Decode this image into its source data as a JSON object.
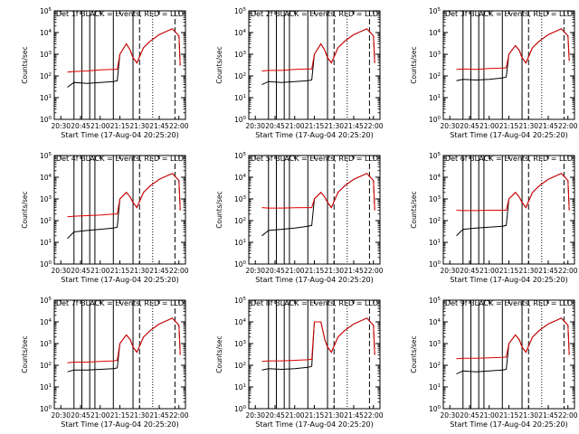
{
  "colors": {
    "background": "#ffffff",
    "events": "#000000",
    "lld": "#e00000",
    "axes": "#000000"
  },
  "chart_data": [
    {
      "type": "line",
      "title": "Det 1f BLACK = Events, RED = LLD",
      "xlabel": "Start Time (17-Aug-04 20:25:20)",
      "ylabel": "Counts/sec",
      "yscale": "log",
      "xlim": [
        "20:25",
        "22:05"
      ],
      "ylim": [
        1,
        100000
      ],
      "xticks": [
        "20:30",
        "20:45",
        "21:00",
        "21:15",
        "21:30",
        "21:45",
        "22:00"
      ],
      "yticks": [
        "10^0",
        "10^1",
        "10^2",
        "10^3",
        "10^4",
        "10^5"
      ],
      "series": [
        {
          "name": "Events",
          "x": [
            "20:35",
            "20:40",
            "20:50",
            "21:00",
            "21:10",
            "21:13",
            "21:15",
            "21:20",
            "21:23",
            "21:25",
            "21:28",
            "21:33",
            "21:38",
            "21:45",
            "21:55",
            "22:00",
            "22:01"
          ],
          "y": [
            30,
            50,
            45,
            50,
            55,
            60,
            1000,
            3000,
            1500,
            700,
            400,
            2000,
            4000,
            8000,
            15000,
            7000,
            300
          ]
        },
        {
          "name": "LLD",
          "x": [
            "20:35",
            "20:40",
            "20:50",
            "21:00",
            "21:10",
            "21:13",
            "21:15",
            "21:20",
            "21:23",
            "21:25",
            "21:28",
            "21:33",
            "21:38",
            "21:45",
            "21:55",
            "22:00",
            "22:01"
          ],
          "y": [
            150,
            160,
            170,
            190,
            200,
            200,
            1000,
            3000,
            1500,
            700,
            400,
            2000,
            4000,
            8000,
            15000,
            7000,
            300
          ]
        }
      ]
    },
    {
      "type": "line",
      "title": "Det 2f BLACK = Events, RED = LLD",
      "xlabel": "Start Time (17-Aug-04 20:25:20)",
      "ylabel": "Counts/sec",
      "yscale": "log",
      "xlim": [
        "20:25",
        "22:05"
      ],
      "ylim": [
        1,
        100000
      ],
      "xticks": [
        "20:30",
        "20:45",
        "21:00",
        "21:15",
        "21:30",
        "21:45",
        "22:00"
      ],
      "yticks": [
        "10^0",
        "10^1",
        "10^2",
        "10^3",
        "10^4",
        "10^5"
      ],
      "series": [
        {
          "name": "Events",
          "x": [
            "20:35",
            "20:40",
            "20:50",
            "21:00",
            "21:10",
            "21:13",
            "21:15",
            "21:20",
            "21:23",
            "21:25",
            "21:28",
            "21:33",
            "21:38",
            "21:45",
            "21:55",
            "22:00",
            "22:01"
          ],
          "y": [
            40,
            55,
            50,
            55,
            60,
            65,
            1000,
            3000,
            1500,
            700,
            400,
            2000,
            4000,
            8000,
            15000,
            7000,
            400
          ]
        },
        {
          "name": "LLD",
          "x": [
            "20:35",
            "20:40",
            "20:50",
            "21:00",
            "21:10",
            "21:13",
            "21:15",
            "21:20",
            "21:23",
            "21:25",
            "21:28",
            "21:33",
            "21:38",
            "21:45",
            "21:55",
            "22:00",
            "22:01"
          ],
          "y": [
            170,
            180,
            180,
            200,
            210,
            210,
            1000,
            3000,
            1500,
            700,
            400,
            2000,
            4000,
            8000,
            15000,
            7000,
            400
          ]
        }
      ]
    },
    {
      "type": "line",
      "title": "Det 3f BLACK = Events, RED = LLD",
      "xlabel": "Start Time (17-Aug-04 20:25:20)",
      "ylabel": "Counts/sec",
      "yscale": "log",
      "xlim": [
        "20:25",
        "22:05"
      ],
      "ylim": [
        1,
        100000
      ],
      "xticks": [
        "20:30",
        "20:45",
        "21:00",
        "21:15",
        "21:30",
        "21:45",
        "22:00"
      ],
      "yticks": [
        "10^0",
        "10^1",
        "10^2",
        "10^3",
        "10^4",
        "10^5"
      ],
      "series": [
        {
          "name": "Events",
          "x": [
            "20:35",
            "20:40",
            "20:50",
            "21:00",
            "21:10",
            "21:13",
            "21:15",
            "21:20",
            "21:23",
            "21:25",
            "21:28",
            "21:33",
            "21:38",
            "21:45",
            "21:55",
            "22:00",
            "22:01"
          ],
          "y": [
            60,
            70,
            65,
            70,
            80,
            90,
            1000,
            2500,
            1500,
            700,
            400,
            2000,
            4000,
            8000,
            15000,
            7000,
            500
          ]
        },
        {
          "name": "LLD",
          "x": [
            "20:35",
            "20:40",
            "20:50",
            "21:00",
            "21:10",
            "21:13",
            "21:15",
            "21:20",
            "21:23",
            "21:25",
            "21:28",
            "21:33",
            "21:38",
            "21:45",
            "21:55",
            "22:00",
            "22:01"
          ],
          "y": [
            200,
            210,
            200,
            220,
            230,
            240,
            1000,
            2500,
            1500,
            700,
            400,
            2000,
            4000,
            8000,
            15000,
            7000,
            500
          ]
        }
      ]
    },
    {
      "type": "line",
      "title": "Det 4f BLACK = Events, RED = LLD",
      "xlabel": "Start Time (17-Aug-04 20:25:20)",
      "ylabel": "Counts/sec",
      "yscale": "log",
      "xlim": [
        "20:25",
        "22:05"
      ],
      "ylim": [
        1,
        100000
      ],
      "xticks": [
        "20:30",
        "20:45",
        "21:00",
        "21:15",
        "21:30",
        "21:45",
        "22:00"
      ],
      "yticks": [
        "10^0",
        "10^1",
        "10^2",
        "10^3",
        "10^4",
        "10^5"
      ],
      "series": [
        {
          "name": "Events",
          "x": [
            "20:35",
            "20:40",
            "20:50",
            "21:00",
            "21:10",
            "21:13",
            "21:15",
            "21:20",
            "21:23",
            "21:25",
            "21:28",
            "21:33",
            "21:38",
            "21:45",
            "21:55",
            "22:00",
            "22:01"
          ],
          "y": [
            15,
            30,
            35,
            40,
            45,
            50,
            1000,
            2000,
            1200,
            700,
            400,
            2000,
            4000,
            8000,
            15000,
            7000,
            300
          ]
        },
        {
          "name": "LLD",
          "x": [
            "20:35",
            "20:40",
            "20:50",
            "21:00",
            "21:10",
            "21:13",
            "21:15",
            "21:20",
            "21:23",
            "21:25",
            "21:28",
            "21:33",
            "21:38",
            "21:45",
            "21:55",
            "22:00",
            "22:01"
          ],
          "y": [
            150,
            160,
            170,
            180,
            200,
            200,
            1000,
            2000,
            1200,
            700,
            400,
            2000,
            4000,
            8000,
            15000,
            7000,
            300
          ]
        }
      ]
    },
    {
      "type": "line",
      "title": "Det 5f BLACK = Events, RED = LLD",
      "xlabel": "Start Time (17-Aug-04 20:25:20)",
      "ylabel": "Counts/sec",
      "yscale": "log",
      "xlim": [
        "20:25",
        "22:05"
      ],
      "ylim": [
        1,
        100000
      ],
      "xticks": [
        "20:30",
        "20:45",
        "21:00",
        "21:15",
        "21:30",
        "21:45",
        "22:00"
      ],
      "yticks": [
        "10^0",
        "10^1",
        "10^2",
        "10^3",
        "10^4",
        "10^5"
      ],
      "series": [
        {
          "name": "Events",
          "x": [
            "20:35",
            "20:40",
            "20:50",
            "21:00",
            "21:10",
            "21:13",
            "21:15",
            "21:20",
            "21:23",
            "21:25",
            "21:28",
            "21:33",
            "21:38",
            "21:45",
            "21:55",
            "22:00",
            "22:01"
          ],
          "y": [
            20,
            35,
            40,
            45,
            55,
            60,
            1000,
            2000,
            1200,
            700,
            400,
            2000,
            4000,
            8000,
            15000,
            7000,
            300
          ]
        },
        {
          "name": "LLD",
          "x": [
            "20:35",
            "20:40",
            "20:50",
            "21:00",
            "21:10",
            "21:13",
            "21:15",
            "21:20",
            "21:23",
            "21:25",
            "21:28",
            "21:33",
            "21:38",
            "21:45",
            "21:55",
            "22:00",
            "22:01"
          ],
          "y": [
            400,
            380,
            380,
            390,
            400,
            400,
            1000,
            2000,
            1200,
            700,
            400,
            2000,
            4000,
            8000,
            15000,
            7000,
            300
          ]
        }
      ]
    },
    {
      "type": "line",
      "title": "Det 6f BLACK = Events, RED = LLD",
      "xlabel": "Start Time (17-Aug-04 20:25:20)",
      "ylabel": "Counts/sec",
      "yscale": "log",
      "xlim": [
        "20:25",
        "22:05"
      ],
      "ylim": [
        1,
        100000
      ],
      "xticks": [
        "20:30",
        "20:45",
        "21:00",
        "21:15",
        "21:30",
        "21:45",
        "22:00"
      ],
      "yticks": [
        "10^0",
        "10^1",
        "10^2",
        "10^3",
        "10^4",
        "10^5"
      ],
      "series": [
        {
          "name": "Events",
          "x": [
            "20:35",
            "20:40",
            "20:50",
            "21:00",
            "21:10",
            "21:13",
            "21:15",
            "21:20",
            "21:23",
            "21:25",
            "21:28",
            "21:33",
            "21:38",
            "21:45",
            "21:55",
            "22:00",
            "22:01"
          ],
          "y": [
            20,
            40,
            45,
            50,
            55,
            60,
            1000,
            2000,
            1200,
            700,
            400,
            2000,
            4000,
            8000,
            15000,
            7000,
            300
          ]
        },
        {
          "name": "LLD",
          "x": [
            "20:35",
            "20:40",
            "20:50",
            "21:00",
            "21:10",
            "21:13",
            "21:15",
            "21:20",
            "21:23",
            "21:25",
            "21:28",
            "21:33",
            "21:38",
            "21:45",
            "21:55",
            "22:00",
            "22:01"
          ],
          "y": [
            300,
            290,
            290,
            300,
            300,
            300,
            1000,
            2000,
            1200,
            700,
            400,
            2000,
            4000,
            8000,
            15000,
            7000,
            300
          ]
        }
      ]
    },
    {
      "type": "line",
      "title": "Det 7f BLACK = Events, RED = LLD",
      "xlabel": "Start Time (17-Aug-04 20:25:20)",
      "ylabel": "Counts/sec",
      "yscale": "log",
      "xlim": [
        "20:25",
        "22:05"
      ],
      "ylim": [
        1,
        100000
      ],
      "xticks": [
        "20:30",
        "20:45",
        "21:00",
        "21:15",
        "21:30",
        "21:45",
        "22:00"
      ],
      "yticks": [
        "10^0",
        "10^1",
        "10^2",
        "10^3",
        "10^4",
        "10^5"
      ],
      "series": [
        {
          "name": "Events",
          "x": [
            "20:35",
            "20:40",
            "20:50",
            "21:00",
            "21:10",
            "21:13",
            "21:15",
            "21:20",
            "21:23",
            "21:25",
            "21:28",
            "21:33",
            "21:38",
            "21:45",
            "21:55",
            "22:00",
            "22:01"
          ],
          "y": [
            50,
            60,
            60,
            65,
            70,
            75,
            1000,
            2500,
            1500,
            700,
            400,
            2000,
            4000,
            8000,
            15000,
            7000,
            300
          ]
        },
        {
          "name": "LLD",
          "x": [
            "20:35",
            "20:40",
            "20:50",
            "21:00",
            "21:10",
            "21:13",
            "21:15",
            "21:20",
            "21:23",
            "21:25",
            "21:28",
            "21:33",
            "21:38",
            "21:45",
            "21:55",
            "22:00",
            "22:01"
          ],
          "y": [
            130,
            140,
            140,
            150,
            160,
            170,
            1000,
            2500,
            1500,
            700,
            400,
            2000,
            4000,
            8000,
            15000,
            7000,
            300
          ]
        }
      ]
    },
    {
      "type": "line",
      "title": "Det 8f BLACK = Events, RED = LLD",
      "xlabel": "Start Time (17-Aug-04 20:25:20)",
      "ylabel": "Counts/sec",
      "yscale": "log",
      "xlim": [
        "20:25",
        "22:05"
      ],
      "ylim": [
        1,
        100000
      ],
      "xticks": [
        "20:30",
        "20:45",
        "21:00",
        "21:15",
        "21:30",
        "21:45",
        "22:00"
      ],
      "yticks": [
        "10^0",
        "10^1",
        "10^2",
        "10^3",
        "10^4",
        "10^5"
      ],
      "series": [
        {
          "name": "Events",
          "x": [
            "20:35",
            "20:40",
            "20:50",
            "21:00",
            "21:10",
            "21:13",
            "21:15",
            "21:20",
            "21:23",
            "21:25",
            "21:28",
            "21:33",
            "21:38",
            "21:45",
            "21:55",
            "22:00",
            "22:01"
          ],
          "y": [
            60,
            70,
            65,
            70,
            80,
            90,
            10000,
            10000,
            1500,
            700,
            400,
            2000,
            4000,
            8000,
            15000,
            7000,
            300
          ]
        },
        {
          "name": "LLD",
          "x": [
            "20:35",
            "20:40",
            "20:50",
            "21:00",
            "21:10",
            "21:13",
            "21:15",
            "21:20",
            "21:23",
            "21:25",
            "21:28",
            "21:33",
            "21:38",
            "21:45",
            "21:55",
            "22:00",
            "22:01"
          ],
          "y": [
            150,
            160,
            160,
            170,
            180,
            190,
            10000,
            10000,
            1500,
            700,
            400,
            2000,
            4000,
            8000,
            15000,
            7000,
            300
          ]
        }
      ]
    },
    {
      "type": "line",
      "title": "Det 9f BLACK = Events, RED = LLD",
      "xlabel": "Start Time (17-Aug-04 20:25:20)",
      "ylabel": "Counts/sec",
      "yscale": "log",
      "xlim": [
        "20:25",
        "22:05"
      ],
      "ylim": [
        1,
        100000
      ],
      "xticks": [
        "20:30",
        "20:45",
        "21:00",
        "21:15",
        "21:30",
        "21:45",
        "22:00"
      ],
      "yticks": [
        "10^0",
        "10^1",
        "10^2",
        "10^3",
        "10^4",
        "10^5"
      ],
      "series": [
        {
          "name": "Events",
          "x": [
            "20:35",
            "20:40",
            "20:50",
            "21:00",
            "21:10",
            "21:13",
            "21:15",
            "21:20",
            "21:23",
            "21:25",
            "21:28",
            "21:33",
            "21:38",
            "21:45",
            "21:55",
            "22:00",
            "22:01"
          ],
          "y": [
            40,
            55,
            50,
            55,
            60,
            65,
            1000,
            2500,
            1500,
            700,
            400,
            2000,
            4000,
            8000,
            15000,
            7000,
            300
          ]
        },
        {
          "name": "LLD",
          "x": [
            "20:35",
            "20:40",
            "20:50",
            "21:00",
            "21:10",
            "21:13",
            "21:15",
            "21:20",
            "21:23",
            "21:25",
            "21:28",
            "21:33",
            "21:38",
            "21:45",
            "21:55",
            "22:00",
            "22:01"
          ],
          "y": [
            200,
            210,
            210,
            220,
            230,
            240,
            1000,
            2500,
            1500,
            700,
            400,
            2000,
            4000,
            8000,
            15000,
            7000,
            300
          ]
        }
      ]
    }
  ]
}
